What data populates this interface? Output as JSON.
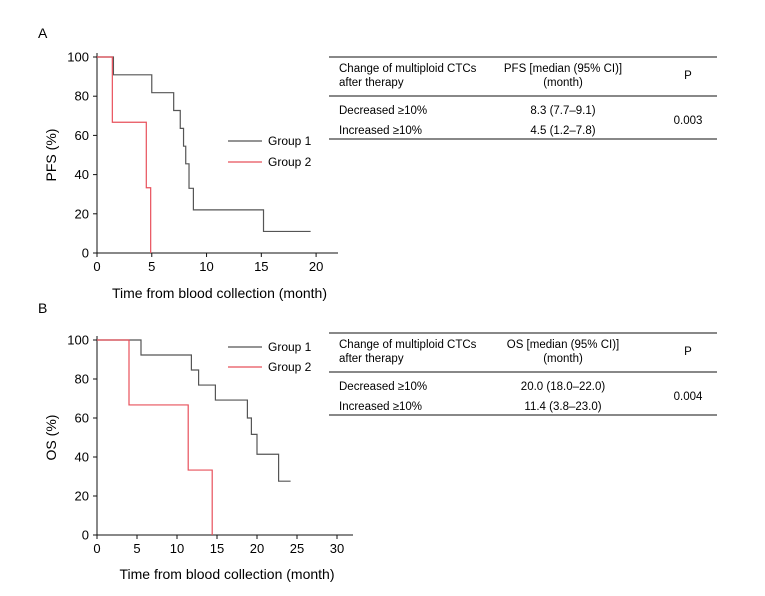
{
  "chart_data": [
    {
      "panel_label": "A",
      "type": "line",
      "step": true,
      "xlabel": "Time from blood collection (month)",
      "ylabel": "PFS (%)",
      "xlim": [
        0,
        22
      ],
      "ylim": [
        0,
        100
      ],
      "xticks": [
        0,
        5,
        10,
        15,
        20
      ],
      "yticks": [
        0,
        20,
        40,
        60,
        80,
        100
      ],
      "legend_position": "top-right",
      "series": [
        {
          "name": "Group 1",
          "color": "#555555",
          "x": [
            0,
            1.5,
            5.0,
            7.0,
            7.6,
            7.9,
            8.1,
            8.4,
            8.8,
            15.2,
            19.5
          ],
          "y": [
            100,
            90.9,
            81.8,
            72.7,
            63.6,
            54.5,
            45.5,
            33.0,
            22.0,
            11.0,
            11.0
          ]
        },
        {
          "name": "Group 2",
          "color": "#e8505b",
          "x": [
            0,
            1.4,
            4.5,
            4.9
          ],
          "y": [
            100,
            66.7,
            33.3,
            0
          ]
        }
      ],
      "table": {
        "headers": [
          "Change of multiploid CTCs after therapy",
          "PFS [median (95% CI)] (month)",
          "P"
        ],
        "rows": [
          [
            "Decreased ≥10%",
            "8.3 (7.7–9.1)"
          ],
          [
            "Increased ≥10%",
            "4.5 (1.2–7.8)"
          ]
        ],
        "p_value": "0.003"
      }
    },
    {
      "panel_label": "B",
      "type": "line",
      "step": true,
      "xlabel": "Time from blood collection (month)",
      "ylabel": "OS (%)",
      "xlim": [
        0,
        32
      ],
      "ylim": [
        0,
        100
      ],
      "xticks": [
        0,
        5,
        10,
        15,
        20,
        25,
        30
      ],
      "yticks": [
        0,
        20,
        40,
        60,
        80,
        100
      ],
      "legend_position": "top-right",
      "series": [
        {
          "name": "Group 1",
          "color": "#555555",
          "x": [
            0,
            5.5,
            11.8,
            12.7,
            14.8,
            18.8,
            19.3,
            20.0,
            22.7,
            24.2
          ],
          "y": [
            100,
            92.3,
            84.6,
            76.9,
            69.2,
            60.0,
            51.6,
            41.4,
            27.6,
            27.6
          ]
        },
        {
          "name": "Group 2",
          "color": "#e8505b",
          "x": [
            0,
            4.0,
            11.4,
            14.4
          ],
          "y": [
            100,
            66.7,
            33.3,
            0
          ]
        }
      ],
      "table": {
        "headers": [
          "Change of multiploid CTCs after therapy",
          "OS [median (95% CI)] (month)",
          "P"
        ],
        "rows": [
          [
            "Decreased ≥10%",
            "20.0 (18.0–22.0)"
          ],
          [
            "Increased ≥10%",
            "11.4 (3.8–23.0)"
          ]
        ],
        "p_value": "0.004"
      }
    }
  ]
}
